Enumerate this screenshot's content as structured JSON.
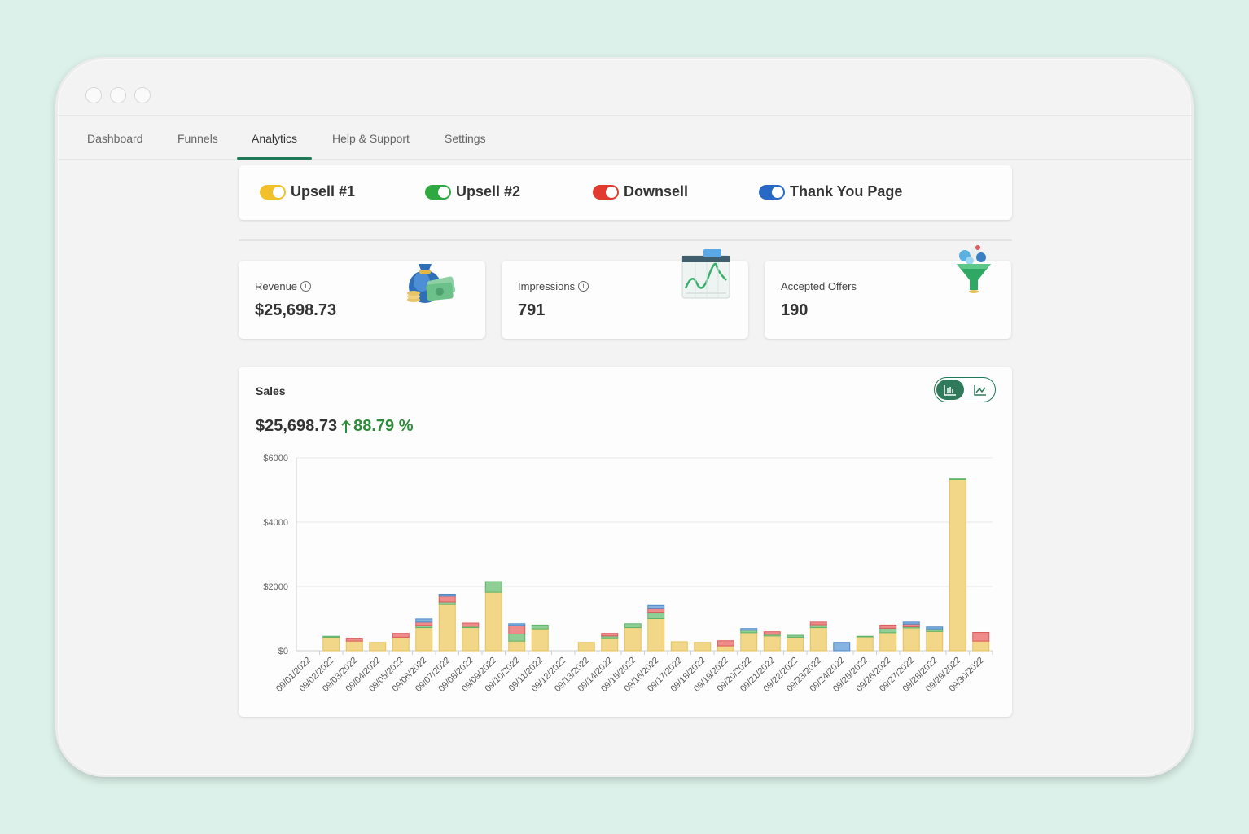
{
  "nav": {
    "tabs": [
      {
        "label": "Dashboard"
      },
      {
        "label": "Funnels"
      },
      {
        "label": "Analytics",
        "active": true
      },
      {
        "label": "Help & Support"
      },
      {
        "label": "Settings"
      }
    ]
  },
  "toggles": [
    {
      "label": "Upsell #1",
      "color": "#f2c02b",
      "on": true
    },
    {
      "label": "Upsell #2",
      "color": "#2fa83f",
      "on": true
    },
    {
      "label": "Downsell",
      "color": "#e23a2e",
      "on": true
    },
    {
      "label": "Thank You Page",
      "color": "#2769c4",
      "on": true
    }
  ],
  "stats": {
    "revenue": {
      "label": "Revenue",
      "value": "$25,698.73",
      "icon": "money-bag-icon"
    },
    "impressions": {
      "label": "Impressions",
      "value": "791",
      "icon": "line-chart-board-icon"
    },
    "accepted": {
      "label": "Accepted Offers",
      "value": "190",
      "icon": "funnel-icon"
    }
  },
  "sales": {
    "title": "Sales",
    "total": "$25,698.73",
    "change": "88.79 %",
    "change_icon": "arrow-up-icon",
    "view_toggle": {
      "selected": "bar-chart-icon",
      "other": "line-chart-icon"
    }
  },
  "chart_data": {
    "type": "bar",
    "stacked": true,
    "ylim": [
      0,
      6000
    ],
    "yticks": [
      "$0",
      "$2000",
      "$4000",
      "$6000"
    ],
    "ytick_values": [
      0,
      2000,
      4000,
      6000
    ],
    "grid": true,
    "categories": [
      "09/01/2022",
      "09/02/2022",
      "09/03/2022",
      "09/04/2022",
      "09/05/2022",
      "09/06/2022",
      "09/07/2022",
      "09/08/2022",
      "09/09/2022",
      "09/10/2022",
      "09/11/2022",
      "09/12/2022",
      "09/13/2022",
      "09/14/2022",
      "09/15/2022",
      "09/16/2022",
      "09/17/2022",
      "09/18/2022",
      "09/19/2022",
      "09/20/2022",
      "09/21/2022",
      "09/22/2022",
      "09/23/2022",
      "09/24/2022",
      "09/25/2022",
      "09/26/2022",
      "09/27/2022",
      "09/28/2022",
      "09/29/2022",
      "09/30/2022"
    ],
    "series": [
      {
        "color": "#f2d789",
        "border": "#e6c25a",
        "values": [
          0,
          420,
          300,
          260,
          420,
          720,
          1440,
          720,
          1820,
          300,
          680,
          0,
          260,
          400,
          720,
          1000,
          280,
          260,
          150,
          560,
          460,
          420,
          720,
          0,
          430,
          560,
          710,
          600,
          5330,
          300
        ]
      },
      {
        "color": "#8fcf95",
        "border": "#5db36a",
        "values": [
          0,
          30,
          0,
          0,
          0,
          70,
          80,
          40,
          330,
          220,
          120,
          0,
          0,
          60,
          120,
          180,
          0,
          0,
          0,
          80,
          50,
          60,
          90,
          0,
          20,
          140,
          40,
          80,
          20,
          0
        ]
      },
      {
        "color": "#ee8c8c",
        "border": "#dd5a5a",
        "values": [
          0,
          0,
          90,
          0,
          120,
          100,
          180,
          100,
          0,
          270,
          0,
          0,
          0,
          80,
          0,
          130,
          0,
          0,
          160,
          0,
          80,
          0,
          80,
          0,
          0,
          100,
          80,
          0,
          0,
          270
        ]
      },
      {
        "color": "#86b3df",
        "border": "#4f88c8",
        "values": [
          0,
          0,
          0,
          0,
          0,
          100,
          60,
          0,
          0,
          50,
          0,
          0,
          0,
          0,
          0,
          100,
          0,
          0,
          0,
          50,
          0,
          0,
          0,
          260,
          0,
          0,
          60,
          60,
          0,
          0
        ]
      }
    ]
  }
}
